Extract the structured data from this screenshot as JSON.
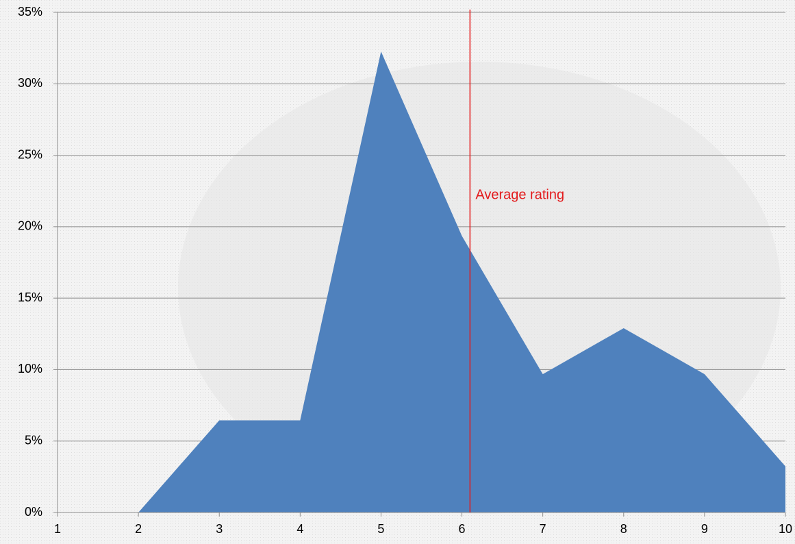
{
  "chart_data": {
    "type": "area",
    "x": [
      1,
      2,
      3,
      4,
      5,
      6,
      7,
      8,
      9,
      10
    ],
    "values": [
      0,
      0,
      6.45,
      6.45,
      32.26,
      19.35,
      9.68,
      12.9,
      9.68,
      3.23
    ],
    "color": "#4f81bd",
    "xlim": [
      1,
      10
    ],
    "xticks": [
      1,
      2,
      3,
      4,
      5,
      6,
      7,
      8,
      9,
      10
    ],
    "ylim": [
      0,
      35
    ],
    "yticks": [
      {
        "value": 0,
        "label": "0%"
      },
      {
        "value": 5,
        "label": "5%"
      },
      {
        "value": 10,
        "label": "10%"
      },
      {
        "value": 15,
        "label": "15%"
      },
      {
        "value": 20,
        "label": "20%"
      },
      {
        "value": 25,
        "label": "25%"
      },
      {
        "value": 30,
        "label": "30%"
      },
      {
        "value": 35,
        "label": "35%"
      }
    ],
    "grid": true,
    "annotation": {
      "text": "Average rating",
      "x": 6.1,
      "color": "#e31a1c"
    }
  }
}
